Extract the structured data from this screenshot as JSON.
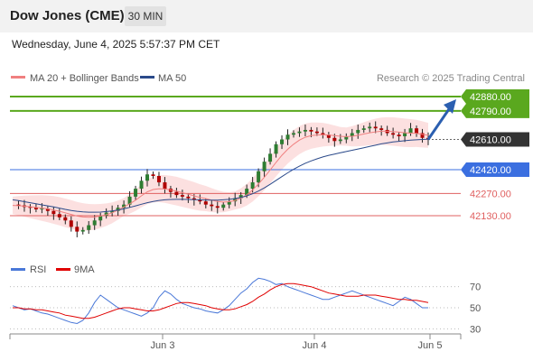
{
  "header": {
    "title": "Dow Jones (CME)",
    "timeframe": "30 MIN",
    "datetime": "Wednesday, June 4, 2025 5:57:37 PM CET"
  },
  "legend": [
    {
      "label": "MA 20 + Bollinger Bands",
      "color": "#f08080"
    },
    {
      "label": "MA 50",
      "color": "#2b4a8a"
    }
  ],
  "credit": "Research © 2025 Trading Central",
  "colors": {
    "resistance": "#5aa81e",
    "current": "#333333",
    "pivot": "#3b6fe0",
    "support": "#e06060",
    "arrow": "#2b5fb0",
    "candle_up": "#2e7d32",
    "candle_down": "#b00000"
  },
  "levels": [
    {
      "value": 42880,
      "label": "42880.00",
      "kind": "resistance"
    },
    {
      "value": 42790,
      "label": "42790.00",
      "kind": "resistance"
    },
    {
      "value": 42610,
      "label": "42610.00",
      "kind": "current"
    },
    {
      "value": 42420,
      "label": "42420.00",
      "kind": "pivot"
    },
    {
      "value": 42270,
      "label": "42270.00",
      "kind": "support"
    },
    {
      "value": 42130,
      "label": "42130.00",
      "kind": "support"
    }
  ],
  "rsi_panel": {
    "legend": [
      {
        "label": "RSI",
        "color": "#4a78d8"
      },
      {
        "label": "9MA",
        "color": "#e00000"
      }
    ],
    "ticks": [
      70,
      50,
      30
    ],
    "tick_labels": [
      "70",
      "50",
      "30"
    ]
  },
  "chart_data": {
    "type": "line",
    "x_labels": [
      "Jun 3",
      "Jun 4",
      "Jun 5"
    ],
    "ylim": [
      41950,
      42930
    ],
    "close": [
      42200,
      42195,
      42185,
      42180,
      42170,
      42175,
      42160,
      42140,
      42120,
      42100,
      42060,
      42030,
      42040,
      42070,
      42100,
      42130,
      42150,
      42160,
      42180,
      42200,
      42250,
      42300,
      42350,
      42390,
      42380,
      42340,
      42300,
      42280,
      42260,
      42250,
      42240,
      42230,
      42220,
      42200,
      42190,
      42180,
      42200,
      42220,
      42240,
      42260,
      42300,
      42340,
      42410,
      42470,
      42520,
      42580,
      42610,
      42640,
      42650,
      42660,
      42670,
      42660,
      42650,
      42640,
      42620,
      42600,
      42610,
      42630,
      42650,
      42670,
      42680,
      42690,
      42680,
      42670,
      42650,
      42640,
      42630,
      42650,
      42680,
      42650,
      42620,
      42610
    ],
    "ma20": [
      42195,
      42193,
      42190,
      42186,
      42182,
      42178,
      42173,
      42166,
      42158,
      42148,
      42138,
      42128,
      42122,
      42120,
      42122,
      42128,
      42136,
      42148,
      42165,
      42185,
      42205,
      42228,
      42255,
      42280,
      42295,
      42300,
      42298,
      42292,
      42285,
      42275,
      42265,
      42255,
      42245,
      42238,
      42228,
      42220,
      42216,
      42218,
      42226,
      42240,
      42262,
      42292,
      42330,
      42372,
      42418,
      42465,
      42510,
      42548,
      42580,
      42606,
      42624,
      42634,
      42638,
      42640,
      42638,
      42634,
      42630,
      42628,
      42630,
      42636,
      42644,
      42652,
      42658,
      42662,
      42662,
      42660,
      42656,
      42652,
      42650,
      42648,
      42642,
      42636
    ],
    "ma50": [
      42230,
      42225,
      42218,
      42212,
      42205,
      42198,
      42192,
      42185,
      42178,
      42170,
      42163,
      42158,
      42154,
      42152,
      42152,
      42153,
      42156,
      42160,
      42166,
      42173,
      42182,
      42192,
      42202,
      42212,
      42220,
      42226,
      42230,
      42232,
      42233,
      42233,
      42232,
      42231,
      42230,
      42229,
      42228,
      42228,
      42230,
      42233,
      42238,
      42245,
      42255,
      42268,
      42285,
      42305,
      42328,
      42352,
      42376,
      42400,
      42422,
      42442,
      42460,
      42475,
      42488,
      42500,
      42510,
      42518,
      42526,
      42534,
      42542,
      42550,
      42558,
      42566,
      42574,
      42582,
      42588,
      42594,
      42598,
      42602,
      42606,
      42608,
      42610,
      42611
    ],
    "rsi": [
      52,
      50,
      48,
      49,
      47,
      45,
      44,
      42,
      40,
      38,
      36,
      35,
      38,
      45,
      55,
      62,
      58,
      54,
      50,
      48,
      46,
      44,
      42,
      45,
      50,
      60,
      66,
      63,
      58,
      54,
      52,
      50,
      49,
      47,
      46,
      45,
      48,
      52,
      58,
      64,
      68,
      74,
      78,
      77,
      75,
      72,
      73,
      70,
      68,
      66,
      64,
      62,
      60,
      58,
      58,
      60,
      62,
      64,
      66,
      64,
      62,
      60,
      58,
      56,
      54,
      52,
      56,
      60,
      58,
      54,
      50,
      50
    ],
    "rsi_ma9": [
      50,
      50,
      49,
      49,
      48,
      48,
      47,
      46,
      45,
      43,
      42,
      41,
      40,
      40,
      41,
      43,
      45,
      47,
      49,
      50,
      50,
      49,
      48,
      47,
      47,
      48,
      50,
      52,
      54,
      55,
      55,
      54,
      53,
      52,
      50,
      49,
      48,
      48,
      49,
      51,
      53,
      56,
      60,
      63,
      67,
      70,
      72,
      73,
      73,
      72,
      71,
      70,
      68,
      66,
      64,
      63,
      62,
      61,
      61,
      61,
      62,
      62,
      62,
      61,
      60,
      59,
      58,
      58,
      57,
      57,
      56,
      55
    ],
    "projection_target": 42880,
    "rsi_ylim": [
      20,
      80
    ]
  }
}
